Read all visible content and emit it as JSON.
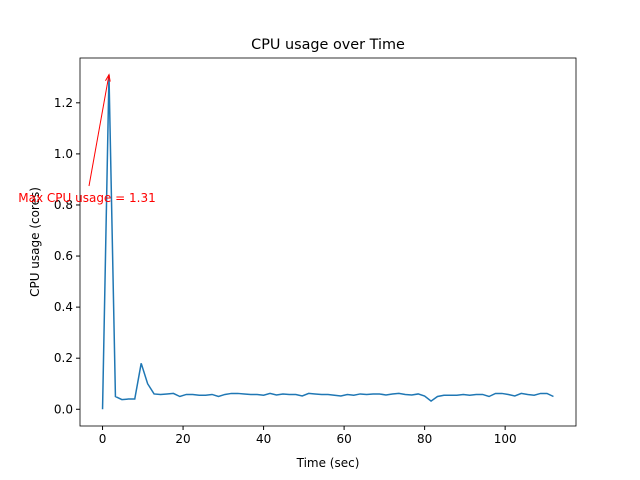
{
  "chart_data": {
    "type": "line",
    "title": "CPU usage over Time",
    "x_label": "Time (sec)",
    "y_label": "CPU usage (cores)",
    "x": [
      0,
      1.6,
      3.2,
      4.8,
      6.4,
      8,
      9.6,
      11.2,
      12.8,
      14.4,
      16,
      17.6,
      19.2,
      20.8,
      22.4,
      24,
      25.6,
      27.2,
      28.8,
      30.4,
      32,
      33.6,
      35.2,
      36.8,
      38.4,
      40,
      41.6,
      43.2,
      44.8,
      46.4,
      48,
      49.6,
      51.2,
      52.8,
      54.4,
      56,
      57.6,
      59.2,
      60.8,
      62.4,
      64,
      65.6,
      67.2,
      68.8,
      70.4,
      72,
      73.6,
      75.2,
      76.8,
      78.4,
      80,
      81.6,
      83.2,
      84.8,
      86.4,
      88,
      89.6,
      91.2,
      92.8,
      94.4,
      96,
      97.6,
      99.2,
      100.8,
      102.4,
      104,
      105.6,
      107.2,
      108.8,
      110.4,
      112
    ],
    "series": [
      {
        "color": "#1f77b4",
        "values": [
          0,
          1.31,
          0.05,
          0.038,
          0.04,
          0.04,
          0.18,
          0.1,
          0.06,
          0.058,
          0.06,
          0.062,
          0.05,
          0.058,
          0.058,
          0.055,
          0.055,
          0.058,
          0.05,
          0.058,
          0.062,
          0.062,
          0.06,
          0.058,
          0.058,
          0.055,
          0.062,
          0.056,
          0.06,
          0.058,
          0.058,
          0.052,
          0.062,
          0.06,
          0.058,
          0.058,
          0.055,
          0.052,
          0.058,
          0.055,
          0.06,
          0.058,
          0.06,
          0.06,
          0.056,
          0.06,
          0.062,
          0.058,
          0.056,
          0.06,
          0.052,
          0.032,
          0.05,
          0.055,
          0.055,
          0.055,
          0.058,
          0.055,
          0.058,
          0.058,
          0.05,
          0.062,
          0.062,
          0.058,
          0.052,
          0.062,
          0.058,
          0.055,
          0.062,
          0.062,
          0.05
        ]
      }
    ],
    "xlim": [
      -5.6,
      117.6
    ],
    "xticks": [
      0,
      20,
      40,
      60,
      80,
      100
    ],
    "ylim": [
      -0.0655,
      1.3755
    ],
    "yticks": [
      {
        "value": 0,
        "label": "0.0"
      },
      0.2,
      0.4,
      0.6,
      0.8,
      {
        "value": 1,
        "label": "1.0"
      },
      1.2
    ],
    "annotation": {
      "text": "Max CPU usage = 1.31",
      "x": 1.6,
      "y": 1.31,
      "color": "red"
    }
  }
}
